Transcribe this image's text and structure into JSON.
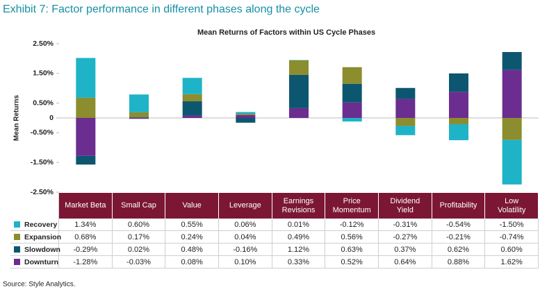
{
  "title": "Exhibit 7: Factor performance in different phases along the cycle",
  "source": "Source: Style Analytics.",
  "chart_data": {
    "type": "stacked-bar",
    "title": "Mean Returns of Factors within US Cycle Phases",
    "y_label": "Mean Returns",
    "categories": [
      "Market Beta",
      "Small Cap",
      "Value",
      "Leverage",
      "Earnings Revisions",
      "Price Momentum",
      "Dividend Yield",
      "Profitability",
      "Low Volatility"
    ],
    "series": [
      {
        "name": "Recovery",
        "color": "#1fb3c8",
        "values": [
          1.34,
          0.6,
          0.55,
          0.06,
          0.01,
          -0.12,
          -0.31,
          -0.54,
          -1.5
        ],
        "value_labels": [
          "1.34%",
          "0.60%",
          "0.55%",
          "0.06%",
          "0.01%",
          "-0.12%",
          "-0.31%",
          "-0.54%",
          "-1.50%"
        ]
      },
      {
        "name": "Expansion",
        "color": "#8b8d2f",
        "values": [
          0.68,
          0.17,
          0.24,
          0.04,
          0.49,
          0.56,
          -0.27,
          -0.21,
          -0.74
        ],
        "value_labels": [
          "0.68%",
          "0.17%",
          "0.24%",
          "0.04%",
          "0.49%",
          "0.56%",
          "-0.27%",
          "-0.21%",
          "-0.74%"
        ]
      },
      {
        "name": "Slowdown",
        "color": "#0d5670",
        "values": [
          -0.29,
          0.02,
          0.48,
          -0.16,
          1.12,
          0.63,
          0.37,
          0.62,
          0.6
        ],
        "value_labels": [
          "-0.29%",
          "0.02%",
          "0.48%",
          "-0.16%",
          "1.12%",
          "0.63%",
          "0.37%",
          "0.62%",
          "0.60%"
        ]
      },
      {
        "name": "Downturn",
        "color": "#6b2d90",
        "values": [
          -1.28,
          -0.03,
          0.08,
          0.1,
          0.33,
          0.52,
          0.64,
          0.88,
          1.62
        ],
        "value_labels": [
          "-1.28%",
          "-0.03%",
          "0.08%",
          "0.10%",
          "0.33%",
          "0.52%",
          "0.64%",
          "0.88%",
          "1.62%"
        ]
      }
    ],
    "stack_order": [
      "Downturn",
      "Slowdown",
      "Expansion",
      "Recovery"
    ],
    "ylim": [
      -2.5,
      2.5
    ],
    "yticks": [
      {
        "value": 2.5,
        "label": "2.50%"
      },
      {
        "value": 1.5,
        "label": "1.50%"
      },
      {
        "value": 0.5,
        "label": "0.50%"
      },
      0,
      {
        "value": -0.5,
        "label": "-0.50%"
      },
      {
        "value": -1.5,
        "label": "-1.50%"
      },
      {
        "value": -2.5,
        "label": "-2.50%"
      }
    ],
    "grid": false
  }
}
